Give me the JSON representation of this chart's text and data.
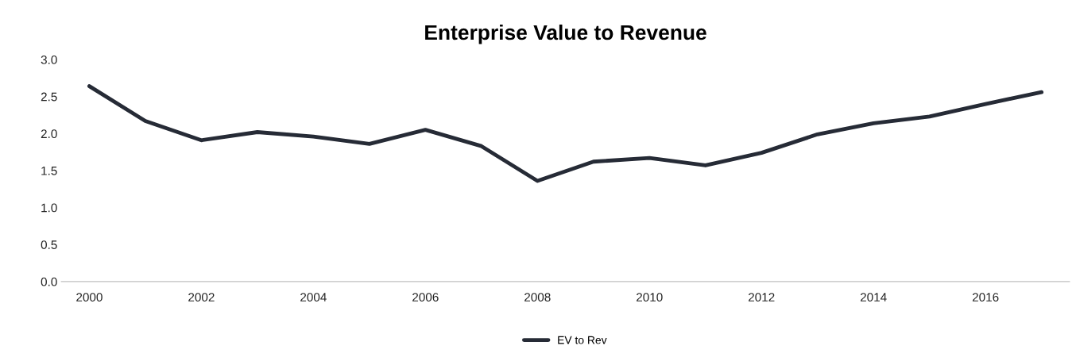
{
  "chart_data": {
    "type": "line",
    "title": "Enterprise Value to Revenue",
    "x": [
      2000,
      2001,
      2002,
      2003,
      2004,
      2005,
      2006,
      2007,
      2008,
      2009,
      2010,
      2011,
      2012,
      2013,
      2014,
      2015,
      2016,
      2017
    ],
    "series": [
      {
        "name": "EV to Rev",
        "color": "#262b36",
        "values": [
          2.64,
          2.17,
          1.91,
          2.02,
          1.96,
          1.86,
          2.05,
          1.83,
          1.36,
          1.62,
          1.67,
          1.57,
          1.74,
          1.99,
          2.14,
          2.23,
          2.4,
          2.56
        ]
      }
    ],
    "xlim": [
      1999.5,
      2017.5
    ],
    "xticks": [
      2000,
      2002,
      2004,
      2006,
      2008,
      2010,
      2012,
      2014,
      2016
    ],
    "ylim": [
      0,
      3
    ],
    "yticks": [
      {
        "value": 0,
        "label": "0.0"
      },
      {
        "value": 0.5,
        "label": "0.5"
      },
      {
        "value": 1,
        "label": "1.0"
      },
      {
        "value": 1.5,
        "label": "1.5"
      },
      {
        "value": 2,
        "label": "2.0"
      },
      {
        "value": 2.5,
        "label": "2.5"
      },
      {
        "value": 3,
        "label": "3.0"
      }
    ],
    "grid": false,
    "legend": "bottom",
    "marker": "none",
    "line_style": "solid"
  }
}
